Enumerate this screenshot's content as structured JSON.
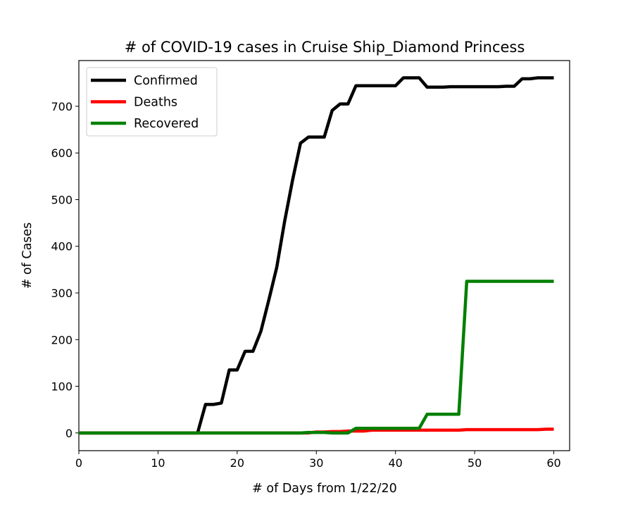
{
  "chart_data": {
    "type": "line",
    "title": "# of COVID-19 cases in Cruise Ship_Diamond Princess",
    "xlabel": "# of Days from 1/22/20",
    "ylabel": "# of Cases",
    "xlim": [
      0,
      62
    ],
    "ylim": [
      -38,
      798
    ],
    "xticks": [
      0,
      10,
      20,
      30,
      40,
      50,
      60
    ],
    "yticks": [
      0,
      100,
      200,
      300,
      400,
      500,
      600,
      700
    ],
    "grid": false,
    "legend_position": "top-left",
    "x": [
      0,
      1,
      2,
      3,
      4,
      5,
      6,
      7,
      8,
      9,
      10,
      11,
      12,
      13,
      14,
      15,
      16,
      17,
      18,
      19,
      20,
      21,
      22,
      23,
      24,
      25,
      26,
      27,
      28,
      29,
      30,
      31,
      32,
      33,
      34,
      35,
      36,
      37,
      38,
      39,
      40,
      41,
      42,
      43,
      44,
      45,
      46,
      47,
      48,
      49,
      50,
      51,
      52,
      53,
      54,
      55,
      56,
      57,
      58,
      59,
      60
    ],
    "series": [
      {
        "name": "Confirmed",
        "color": "#000000",
        "values": [
          0,
          0,
          0,
          0,
          0,
          0,
          0,
          0,
          0,
          0,
          0,
          0,
          0,
          0,
          0,
          0,
          61,
          61,
          64,
          135,
          135,
          175,
          175,
          218,
          285,
          355,
          454,
          542,
          621,
          634,
          634,
          634,
          691,
          705,
          705,
          744,
          744,
          744,
          744,
          744,
          744,
          761,
          761,
          761,
          741,
          741,
          741,
          742,
          742,
          742,
          742,
          742,
          742,
          742,
          743,
          743,
          759,
          759,
          761,
          761,
          761
        ]
      },
      {
        "name": "Deaths",
        "color": "#ff0000",
        "values": [
          0,
          0,
          0,
          0,
          0,
          0,
          0,
          0,
          0,
          0,
          0,
          0,
          0,
          0,
          0,
          0,
          0,
          0,
          0,
          0,
          0,
          0,
          0,
          0,
          0,
          0,
          0,
          0,
          0,
          0,
          2,
          2,
          3,
          3,
          4,
          4,
          4,
          6,
          6,
          6,
          6,
          6,
          6,
          6,
          6,
          6,
          6,
          6,
          6,
          7,
          7,
          7,
          7,
          7,
          7,
          7,
          7,
          7,
          7,
          8,
          8
        ]
      },
      {
        "name": "Recovered",
        "color": "#008000",
        "values": [
          0,
          0,
          0,
          0,
          0,
          0,
          0,
          0,
          0,
          0,
          0,
          0,
          0,
          0,
          0,
          0,
          0,
          0,
          0,
          0,
          0,
          0,
          0,
          0,
          0,
          0,
          0,
          0,
          0,
          1,
          1,
          1,
          0,
          0,
          0,
          10,
          10,
          10,
          10,
          10,
          10,
          10,
          10,
          10,
          40,
          40,
          40,
          40,
          40,
          325,
          325,
          325,
          325,
          325,
          325,
          325,
          325,
          325,
          325,
          325,
          325
        ]
      }
    ]
  }
}
